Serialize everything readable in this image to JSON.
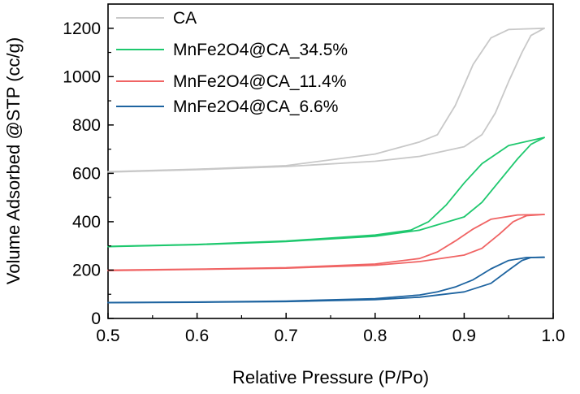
{
  "chart_data": {
    "type": "line",
    "title": "",
    "xlabel": "Relative Pressure (P/Po)",
    "ylabel": "Volume Adsorbed @STP (cc/g)",
    "xlim": [
      0.5,
      1.0
    ],
    "ylim": [
      0,
      1300
    ],
    "xticks": [
      0.5,
      0.6,
      0.7,
      0.8,
      0.9,
      1.0
    ],
    "xtick_labels": [
      "0.5",
      "0.6",
      "0.7",
      "0.8",
      "0.9",
      "1.0"
    ],
    "yticks": [
      0,
      200,
      400,
      600,
      800,
      1000,
      1200
    ],
    "ytick_labels": [
      "0",
      "200",
      "400",
      "600",
      "800",
      "1000",
      "1200"
    ],
    "grid": false,
    "legend_position": "top-left",
    "series": [
      {
        "name": "CA",
        "color": "#c8c8c8",
        "adsorption": [
          [
            0.5,
            605
          ],
          [
            0.6,
            615
          ],
          [
            0.7,
            628
          ],
          [
            0.8,
            650
          ],
          [
            0.85,
            670
          ],
          [
            0.9,
            710
          ],
          [
            0.92,
            760
          ],
          [
            0.935,
            850
          ],
          [
            0.95,
            980
          ],
          [
            0.965,
            1100
          ],
          [
            0.975,
            1170
          ],
          [
            0.99,
            1200
          ]
        ],
        "desorption": [
          [
            0.99,
            1200
          ],
          [
            0.95,
            1195
          ],
          [
            0.93,
            1160
          ],
          [
            0.91,
            1050
          ],
          [
            0.89,
            880
          ],
          [
            0.87,
            760
          ],
          [
            0.85,
            730
          ],
          [
            0.8,
            680
          ],
          [
            0.7,
            632
          ],
          [
            0.6,
            617
          ],
          [
            0.5,
            607
          ]
        ]
      },
      {
        "name": "MnFe2O4@CA_34.5%",
        "color": "#1ec86e",
        "adsorption": [
          [
            0.5,
            297
          ],
          [
            0.6,
            305
          ],
          [
            0.7,
            318
          ],
          [
            0.8,
            340
          ],
          [
            0.85,
            365
          ],
          [
            0.9,
            420
          ],
          [
            0.92,
            480
          ],
          [
            0.94,
            570
          ],
          [
            0.96,
            660
          ],
          [
            0.975,
            720
          ],
          [
            0.99,
            748
          ]
        ],
        "desorption": [
          [
            0.99,
            748
          ],
          [
            0.95,
            715
          ],
          [
            0.92,
            640
          ],
          [
            0.9,
            560
          ],
          [
            0.88,
            470
          ],
          [
            0.86,
            400
          ],
          [
            0.84,
            365
          ],
          [
            0.8,
            345
          ],
          [
            0.7,
            320
          ],
          [
            0.6,
            306
          ],
          [
            0.5,
            298
          ]
        ]
      },
      {
        "name": "MnFe2O4@CA_11.4%",
        "color": "#f06464",
        "adsorption": [
          [
            0.5,
            198
          ],
          [
            0.6,
            203
          ],
          [
            0.7,
            208
          ],
          [
            0.8,
            220
          ],
          [
            0.85,
            235
          ],
          [
            0.9,
            262
          ],
          [
            0.92,
            290
          ],
          [
            0.94,
            350
          ],
          [
            0.955,
            400
          ],
          [
            0.97,
            425
          ],
          [
            0.99,
            430
          ]
        ],
        "desorption": [
          [
            0.99,
            430
          ],
          [
            0.96,
            428
          ],
          [
            0.93,
            410
          ],
          [
            0.91,
            370
          ],
          [
            0.89,
            320
          ],
          [
            0.87,
            275
          ],
          [
            0.85,
            248
          ],
          [
            0.8,
            225
          ],
          [
            0.7,
            210
          ],
          [
            0.6,
            204
          ],
          [
            0.5,
            200
          ]
        ]
      },
      {
        "name": "MnFe2O4@CA_6.6%",
        "color": "#1e64a0",
        "adsorption": [
          [
            0.5,
            65
          ],
          [
            0.6,
            67
          ],
          [
            0.7,
            70
          ],
          [
            0.8,
            78
          ],
          [
            0.85,
            88
          ],
          [
            0.9,
            110
          ],
          [
            0.93,
            145
          ],
          [
            0.95,
            200
          ],
          [
            0.965,
            240
          ],
          [
            0.975,
            252
          ],
          [
            0.99,
            253
          ]
        ],
        "desorption": [
          [
            0.99,
            253
          ],
          [
            0.97,
            252
          ],
          [
            0.95,
            240
          ],
          [
            0.93,
            205
          ],
          [
            0.91,
            160
          ],
          [
            0.89,
            130
          ],
          [
            0.87,
            110
          ],
          [
            0.85,
            97
          ],
          [
            0.8,
            82
          ],
          [
            0.7,
            72
          ],
          [
            0.6,
            68
          ],
          [
            0.5,
            66
          ]
        ]
      }
    ]
  }
}
